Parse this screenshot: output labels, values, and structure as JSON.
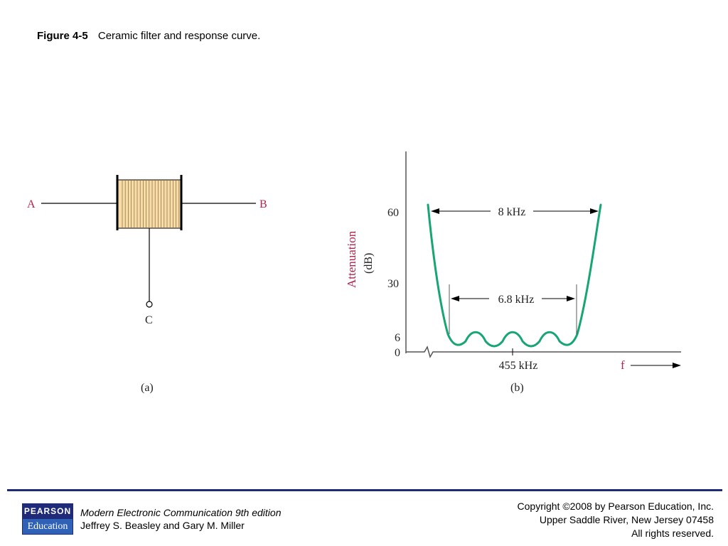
{
  "caption": {
    "figure_label": "Figure 4-5",
    "title": "Ceramic filter and response curve."
  },
  "diagram_a": {
    "terminal_a": "A",
    "terminal_b": "B",
    "terminal_c": "C",
    "sublabel": "(a)"
  },
  "diagram_b": {
    "ylabel": "Attenuation",
    "yunit": "(dB)",
    "yticks": [
      "60",
      "30",
      "6",
      "0"
    ],
    "center_label": "455 kHz",
    "xlabel": "f",
    "bandwidth_60db": "8 kHz",
    "bandwidth_6db": "6.8 kHz",
    "sublabel": "(b)"
  },
  "colors": {
    "curve": "#17a673",
    "filter_fill": "#f7dca8",
    "terminal_label": "#b0244c",
    "footer_rule": "#1f2a78"
  },
  "footer": {
    "logo_top": "PEARSON",
    "logo_bottom": "Education",
    "book_title": "Modern Electronic Communication 9th edition",
    "authors": "Jeffrey S. Beasley and Gary M. Miller",
    "copyright_1": "Copyright ©2008 by Pearson Education, Inc.",
    "copyright_2": "Upper Saddle River, New Jersey 07458",
    "copyright_3": "All rights reserved."
  }
}
